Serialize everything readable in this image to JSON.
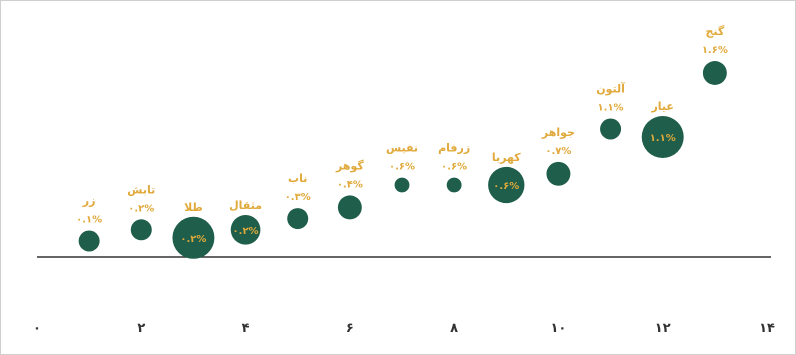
{
  "chart_data": {
    "type": "scatter",
    "title": "",
    "xlabel": "",
    "ylabel": "",
    "xlim": [
      0,
      14
    ],
    "x_ticks": [
      "۰",
      "۲",
      "۴",
      "۶",
      "۸",
      "۱۰",
      "۱۲",
      "۱۴"
    ],
    "colors": {
      "bubble": "#1f5e4a",
      "label": "#e0a93a",
      "axis": "#333333"
    },
    "points": [
      {
        "name": "زر",
        "x": 1,
        "value": 0.1,
        "value_label": "۰.۱%",
        "size": 1,
        "label_inside": false
      },
      {
        "name": "تابش",
        "x": 2,
        "value": 0.2,
        "value_label": "۰.۲%",
        "size": 1,
        "label_inside": false
      },
      {
        "name": "طلا",
        "x": 3,
        "value": 0.2,
        "value_label": "۰.۲%",
        "size": 4,
        "label_inside": true
      },
      {
        "name": "مثقال",
        "x": 4,
        "value": 0.2,
        "value_label": "۰.۲%",
        "size": 2,
        "label_inside": true
      },
      {
        "name": "ناب",
        "x": 5,
        "value": 0.3,
        "value_label": "۰.۳%",
        "size": 1,
        "label_inside": false
      },
      {
        "name": "گوهر",
        "x": 6,
        "value": 0.4,
        "value_label": "۰.۴%",
        "size": 1.3,
        "label_inside": false
      },
      {
        "name": "نفیس",
        "x": 7,
        "value": 0.6,
        "value_label": "۰.۶%",
        "size": 0.5,
        "label_inside": false
      },
      {
        "name": "زرفام",
        "x": 8,
        "value": 0.6,
        "value_label": "۰.۶%",
        "size": 0.5,
        "label_inside": false
      },
      {
        "name": "کهربا",
        "x": 9,
        "value": 0.6,
        "value_label": "۰.۶%",
        "size": 3,
        "label_inside": true
      },
      {
        "name": "جواهر",
        "x": 10,
        "value": 0.7,
        "value_label": "۰.۷%",
        "size": 1.3,
        "label_inside": false
      },
      {
        "name": "آلتون",
        "x": 11,
        "value": 1.1,
        "value_label": "۱.۱%",
        "size": 1,
        "label_inside": false
      },
      {
        "name": "عیار",
        "x": 12,
        "value": 1.1,
        "value_label": "۱.۱%",
        "size": 4,
        "label_inside": true
      },
      {
        "name": "گنج",
        "x": 13,
        "value": 1.6,
        "value_label": "۱.۶%",
        "size": 1.3,
        "label_inside": false
      }
    ]
  }
}
